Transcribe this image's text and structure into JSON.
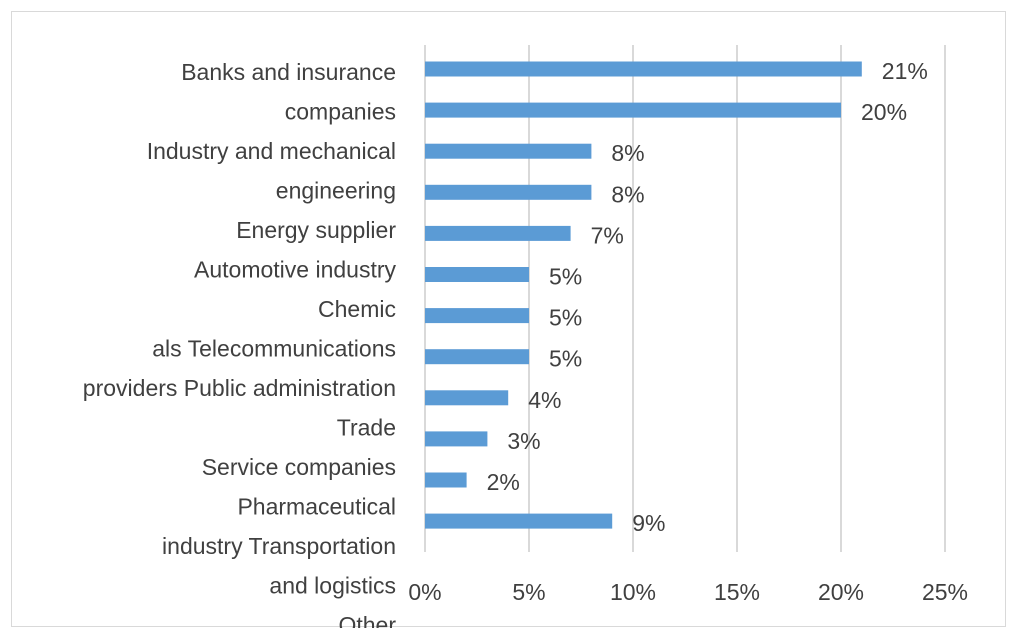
{
  "chart_data": {
    "type": "bar",
    "orientation": "horizontal",
    "title": "",
    "xlabel": "",
    "ylabel": "",
    "xlim": [
      0,
      25
    ],
    "x_ticks": [
      0,
      5,
      10,
      15,
      20,
      25
    ],
    "x_tick_labels": [
      "0%",
      "5%",
      "10%",
      "15%",
      "20%",
      "25%"
    ],
    "grid": true,
    "legend": "none",
    "bar_color": "#5b9bd5",
    "category_label_lines": [
      "Banks and insurance",
      "companies",
      "Industry and mechanical",
      "engineering",
      "Energy supplier",
      "Automotive industry",
      "Chemic",
      "als Telecommunications",
      "providers Public administration",
      "Trade",
      "Service companies",
      "Pharmaceutical",
      "industry Transportation",
      "and logistics",
      "Other"
    ],
    "values": [
      21,
      20,
      8,
      8,
      7,
      5,
      5,
      5,
      4,
      3,
      2,
      9
    ],
    "value_labels": [
      "21%",
      "20%",
      "8%",
      "8%",
      "7%",
      "5%",
      "5%",
      "5%",
      "4%",
      "3%",
      "2%",
      "9%"
    ]
  }
}
